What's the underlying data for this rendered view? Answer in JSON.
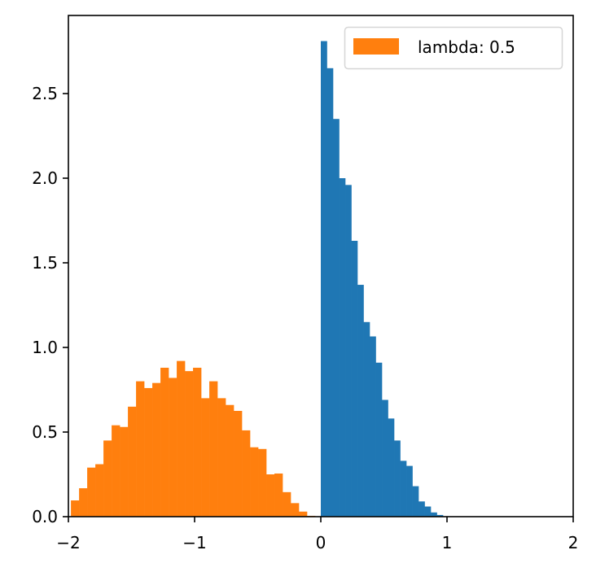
{
  "chart_data": {
    "type": "bar",
    "subtype": "histogram",
    "title": "",
    "xlabel": "",
    "ylabel": "",
    "xlim": [
      -2,
      2
    ],
    "ylim": [
      0,
      2.95
    ],
    "grid": false,
    "legend_position": "upper right",
    "xticks": [
      -2,
      -1,
      0,
      1,
      2
    ],
    "xtick_labels": [
      "−2",
      "−1",
      "0",
      "1",
      "2"
    ],
    "yticks": [
      0.0,
      0.5,
      1.0,
      1.5,
      2.0,
      2.5
    ],
    "ytick_labels": [
      "0.0",
      "0.5",
      "1.0",
      "1.5",
      "2.0",
      "2.5"
    ],
    "series": [
      {
        "name": "",
        "color": "#1f77b4",
        "in_legend": false,
        "bin_start": 0.0,
        "bin_width": 0.0484,
        "values": [
          2.81,
          2.65,
          2.35,
          2.0,
          1.96,
          1.63,
          1.37,
          1.15,
          1.065,
          0.91,
          0.69,
          0.58,
          0.45,
          0.33,
          0.3,
          0.18,
          0.09,
          0.06,
          0.025,
          0.01
        ]
      },
      {
        "name": "lambda: 0.5",
        "color": "#ff7f0e",
        "in_legend": true,
        "bin_start": -1.98,
        "bin_width": 0.0645,
        "values": [
          0.096,
          0.168,
          0.29,
          0.31,
          0.45,
          0.54,
          0.53,
          0.65,
          0.8,
          0.76,
          0.79,
          0.88,
          0.82,
          0.92,
          0.86,
          0.88,
          0.7,
          0.8,
          0.7,
          0.66,
          0.625,
          0.51,
          0.41,
          0.4,
          0.25,
          0.255,
          0.145,
          0.08,
          0.03,
          0.005
        ]
      }
    ],
    "legend": [
      {
        "label": "lambda: 0.5",
        "color": "#ff7f0e"
      }
    ]
  },
  "legend": {
    "label": "lambda: 0.5"
  }
}
